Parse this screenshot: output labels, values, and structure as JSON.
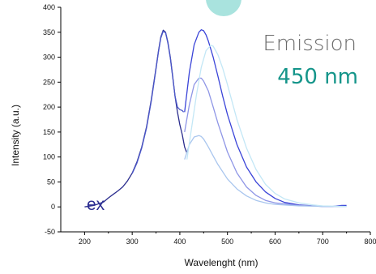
{
  "chart_data": {
    "type": "line",
    "title": "",
    "xlabel": "Wavelenght (nm)",
    "ylabel": "Intensity (a.u.)",
    "xlim": [
      150,
      800
    ],
    "ylim": [
      -50,
      400
    ],
    "xticks": [
      200,
      300,
      400,
      500,
      600,
      700,
      800
    ],
    "yticks": [
      -50,
      0,
      50,
      100,
      150,
      200,
      250,
      300,
      350,
      400
    ],
    "grid": false,
    "legend": "none",
    "annotations": {
      "emission_label": "Emission",
      "emission_wavelength": "450 nm",
      "excitation_label": "ex"
    },
    "colors": {
      "excitation_dark": "#2b2d8e",
      "excitation_blue": "#4b57c9",
      "emission_1": "#3a44d8",
      "emission_2": "#8f96e6",
      "emission_3": "#a9c6ee",
      "emission_4": "#c3e7f6",
      "annotation_teal": "#15958a",
      "bubble": "#a9e3de"
    },
    "series": [
      {
        "role": "excitation",
        "color_key": "excitation_dark",
        "x": [
          200,
          220,
          240,
          250,
          260,
          270,
          280,
          290,
          300,
          310,
          320,
          330,
          340,
          350,
          355,
          360,
          365,
          370,
          375,
          380,
          385,
          390,
          395,
          400,
          405,
          410,
          415
        ],
        "y": [
          0,
          3,
          10,
          18,
          25,
          32,
          40,
          52,
          68,
          90,
          120,
          160,
          215,
          278,
          312,
          340,
          354,
          350,
          330,
          300,
          262,
          222,
          190,
          165,
          145,
          120,
          108
        ]
      },
      {
        "role": "excitation",
        "color_key": "excitation_blue",
        "x": [
          300,
          310,
          320,
          330,
          340,
          350,
          355,
          360,
          365,
          370,
          375,
          380,
          385,
          390,
          395,
          400,
          405,
          408
        ],
        "y": [
          67,
          88,
          118,
          158,
          212,
          276,
          310,
          338,
          352,
          349,
          328,
          298,
          260,
          222,
          200,
          195,
          193,
          190
        ]
      },
      {
        "role": "emission",
        "color_key": "emission_1",
        "x": [
          410,
          420,
          430,
          440,
          445,
          450,
          455,
          460,
          470,
          480,
          490,
          500,
          520,
          540,
          560,
          580,
          600,
          620,
          650,
          680,
          700,
          720,
          740,
          750
        ],
        "y": [
          190,
          270,
          325,
          350,
          355,
          353,
          345,
          332,
          300,
          262,
          222,
          185,
          125,
          80,
          50,
          30,
          17,
          9,
          4,
          2,
          1,
          1,
          3,
          3
        ]
      },
      {
        "role": "emission",
        "color_key": "emission_2",
        "x": [
          410,
          420,
          430,
          440,
          445,
          450,
          460,
          470,
          480,
          500,
          520,
          540,
          560,
          580,
          600,
          650,
          700,
          750
        ],
        "y": [
          150,
          205,
          245,
          258,
          258,
          252,
          232,
          200,
          168,
          110,
          68,
          40,
          23,
          13,
          8,
          3,
          1,
          1
        ]
      },
      {
        "role": "emission",
        "color_key": "emission_3",
        "x": [
          410,
          420,
          430,
          440,
          445,
          450,
          460,
          470,
          480,
          500,
          520,
          540,
          560,
          580,
          600,
          650,
          700,
          750
        ],
        "y": [
          95,
          125,
          140,
          143,
          141,
          136,
          120,
          102,
          85,
          56,
          36,
          22,
          13,
          8,
          5,
          2,
          1,
          1
        ]
      },
      {
        "role": "emission",
        "color_key": "emission_4",
        "x": [
          415,
          425,
          435,
          445,
          455,
          465,
          470,
          480,
          490,
          500,
          520,
          540,
          560,
          580,
          600,
          620,
          650,
          680,
          700,
          750
        ],
        "y": [
          95,
          160,
          225,
          280,
          313,
          324,
          322,
          305,
          278,
          245,
          175,
          118,
          75,
          45,
          27,
          16,
          8,
          4,
          2,
          1
        ]
      }
    ]
  }
}
